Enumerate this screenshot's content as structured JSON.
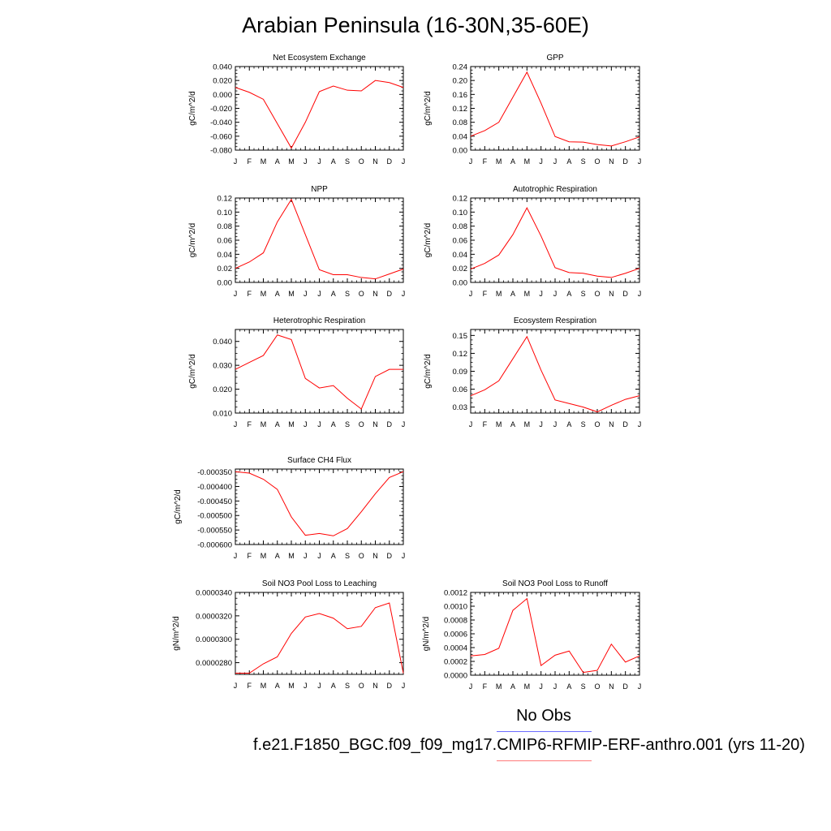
{
  "title": "Arabian Peninsula (16-30N,35-60E)",
  "legend": {
    "obs_label": "No Obs",
    "case_label": "f.e21.F1850_BGC.f09_f09_mg17.CMIP6-RFMIP-ERF-anthro.001 (yrs 11-20)",
    "obs_color": "#6c6cff",
    "case_color": "#ff0000"
  },
  "month_labels": [
    "J",
    "F",
    "M",
    "A",
    "M",
    "J",
    "J",
    "A",
    "S",
    "O",
    "N",
    "D",
    "J"
  ],
  "chart_data": [
    {
      "type": "line",
      "title": "Net Ecosystem Exchange",
      "ylabel": "gC/m^2/d",
      "ylim": [
        -0.08,
        0.04
      ],
      "yticks": [
        -0.08,
        -0.06,
        -0.04,
        -0.02,
        0.0,
        0.02,
        0.04
      ],
      "ytick_labels": [
        "-0.080",
        "-0.060",
        "-0.040",
        "-0.020",
        "0.000",
        "0.020",
        "0.040"
      ],
      "values": [
        0.01,
        0.003,
        -0.007,
        -0.042,
        -0.077,
        -0.04,
        0.004,
        0.012,
        0.006,
        0.005,
        0.02,
        0.017,
        0.01
      ]
    },
    {
      "type": "line",
      "title": "GPP",
      "ylabel": "gC/m^2/d",
      "ylim": [
        0.0,
        0.24
      ],
      "yticks": [
        0.0,
        0.04,
        0.08,
        0.12,
        0.16,
        0.2,
        0.24
      ],
      "ytick_labels": [
        "0.00",
        "0.04",
        "0.08",
        "0.12",
        "0.16",
        "0.20",
        "0.24"
      ],
      "values": [
        0.04,
        0.056,
        0.08,
        0.152,
        0.224,
        0.135,
        0.039,
        0.024,
        0.023,
        0.016,
        0.012,
        0.024,
        0.038
      ]
    },
    {
      "type": "line",
      "title": "NPP",
      "ylabel": "gC/m^2/d",
      "ylim": [
        0.0,
        0.12
      ],
      "yticks": [
        0.0,
        0.02,
        0.04,
        0.06,
        0.08,
        0.1,
        0.12
      ],
      "ytick_labels": [
        "0.00",
        "0.02",
        "0.04",
        "0.06",
        "0.08",
        "0.10",
        "0.12"
      ],
      "values": [
        0.02,
        0.029,
        0.042,
        0.086,
        0.118,
        0.068,
        0.018,
        0.011,
        0.011,
        0.007,
        0.005,
        0.012,
        0.019
      ]
    },
    {
      "type": "line",
      "title": "Autotrophic Respiration",
      "ylabel": "gC/m^2/d",
      "ylim": [
        0.0,
        0.12
      ],
      "yticks": [
        0.0,
        0.02,
        0.04,
        0.06,
        0.08,
        0.1,
        0.12
      ],
      "ytick_labels": [
        "0.00",
        "0.02",
        "0.04",
        "0.06",
        "0.08",
        "0.10",
        "0.12"
      ],
      "values": [
        0.019,
        0.027,
        0.039,
        0.068,
        0.106,
        0.066,
        0.021,
        0.014,
        0.013,
        0.009,
        0.007,
        0.013,
        0.02
      ]
    },
    {
      "type": "line",
      "title": "Heterotrophic Respiration",
      "ylabel": "gC/m^2/d",
      "ylim": [
        0.01,
        0.045
      ],
      "yticks": [
        0.01,
        0.02,
        0.03,
        0.04
      ],
      "ytick_labels": [
        "0.010",
        "0.020",
        "0.030",
        "0.040"
      ],
      "values": [
        0.0283,
        0.0312,
        0.0341,
        0.0427,
        0.0408,
        0.0245,
        0.0205,
        0.0215,
        0.0162,
        0.0117,
        0.0253,
        0.0283,
        0.0283
      ]
    },
    {
      "type": "line",
      "title": "Ecosystem Respiration",
      "ylabel": "gC/m^2/d",
      "ylim": [
        0.02,
        0.16
      ],
      "yticks": [
        0.03,
        0.06,
        0.09,
        0.12,
        0.15
      ],
      "ytick_labels": [
        "0.03",
        "0.06",
        "0.09",
        "0.12",
        "0.15"
      ],
      "values": [
        0.049,
        0.059,
        0.074,
        0.111,
        0.148,
        0.092,
        0.042,
        0.036,
        0.03,
        0.022,
        0.033,
        0.043,
        0.049
      ]
    },
    {
      "type": "line",
      "title": "Surface CH4 Flux",
      "ylabel": "gC/m^2/d",
      "ylim": [
        -0.0006,
        -0.00034
      ],
      "yticks": [
        -0.0006,
        -0.00055,
        -0.0005,
        -0.00045,
        -0.0004,
        -0.00035
      ],
      "ytick_labels": [
        "-0.000600",
        "-0.000550",
        "-0.000500",
        "-0.000450",
        "-0.000400",
        "-0.000350"
      ],
      "values": [
        -0.000349,
        -0.000354,
        -0.000375,
        -0.00041,
        -0.000505,
        -0.000568,
        -0.000562,
        -0.00057,
        -0.000545,
        -0.000487,
        -0.000425,
        -0.000369,
        -0.000349
      ]
    },
    {
      "type": "line",
      "title": "Soil NO3 Pool Loss to Leaching",
      "ylabel": "gN/m^2/d",
      "ylim": [
        2.7e-05,
        3.4e-05
      ],
      "yticks": [
        2.8e-05,
        3e-05,
        3.2e-05,
        3.4e-05
      ],
      "ytick_labels": [
        "0.0000280",
        "0.0000300",
        "0.0000320",
        "0.0000340"
      ],
      "values": [
        2.71e-05,
        2.71e-05,
        2.79e-05,
        2.85e-05,
        3.05e-05,
        3.19e-05,
        3.22e-05,
        3.18e-05,
        3.09e-05,
        3.11e-05,
        3.27e-05,
        3.31e-05,
        2.71e-05
      ]
    },
    {
      "type": "line",
      "title": "Soil NO3 Pool Loss to Runoff",
      "ylabel": "gN/m^2/d",
      "ylim": [
        0.0,
        0.0012
      ],
      "yticks": [
        0.0,
        0.0002,
        0.0004,
        0.0006,
        0.0008,
        0.001,
        0.0012
      ],
      "ytick_labels": [
        "0.0000",
        "0.0002",
        "0.0004",
        "0.0006",
        "0.0008",
        "0.0010",
        "0.0012"
      ],
      "values": [
        0.00028,
        0.0003,
        0.00039,
        0.00094,
        0.00111,
        0.00014,
        0.00029,
        0.00035,
        4e-05,
        7e-05,
        0.00045,
        0.00019,
        0.00028
      ]
    }
  ]
}
